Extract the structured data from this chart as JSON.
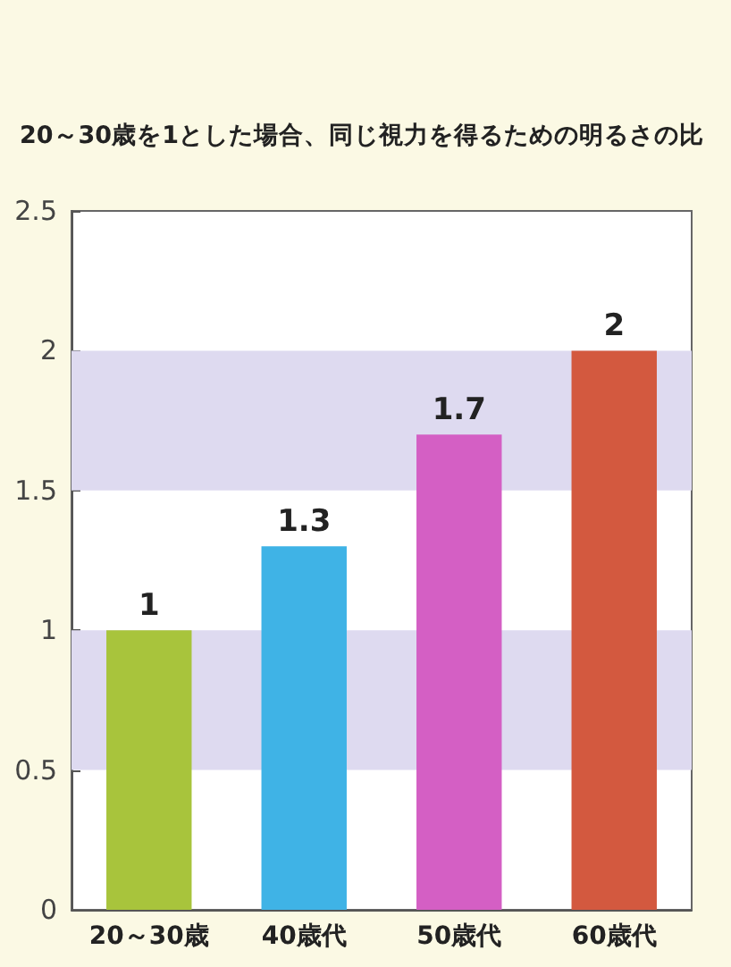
{
  "chart_data": {
    "type": "bar",
    "title": "20～30歳を1とした場合、同じ視力を得るための明るさの比",
    "categories": [
      "20～30歳",
      "40歳代",
      "50歳代",
      "60歳代"
    ],
    "values": [
      1,
      1.3,
      1.7,
      2
    ],
    "colors": [
      "#a8c43c",
      "#3fb3e6",
      "#d45fc4",
      "#d3593f"
    ],
    "ylim": [
      0,
      2.5
    ],
    "yticks": [
      0,
      0.5,
      1,
      1.5,
      2,
      2.5
    ],
    "grid": false,
    "data_labels": true,
    "bands": [
      {
        "axis": "y",
        "from": 0.5,
        "to": 1,
        "color": "#dedaf0"
      },
      {
        "axis": "y",
        "from": 1.5,
        "to": 2,
        "color": "#dedaf0"
      }
    ]
  }
}
